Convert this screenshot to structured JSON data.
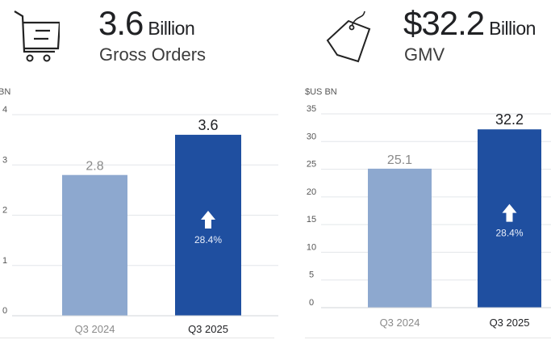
{
  "headers": [
    {
      "value": "3.6",
      "unit": "Billion",
      "label": "Gross Orders",
      "icon": "shopping-cart-icon"
    },
    {
      "value": "$32.2",
      "unit": "Billion",
      "label": "GMV",
      "icon": "price-tag-icon"
    }
  ],
  "colors": {
    "prior": "#8da8cf",
    "current": "#1f4fa0",
    "grid": "#e3e6ea",
    "axis_text": "#555555",
    "prior_label": "#8a8a8a",
    "current_label": "#202124"
  },
  "chart_data": [
    {
      "type": "bar",
      "title": "Gross Orders",
      "ylabel": "BN",
      "categories": [
        "Q3 2024",
        "Q3 2025"
      ],
      "values": [
        2.8,
        3.6
      ],
      "value_labels": [
        "2.8",
        "3.6"
      ],
      "ylim": [
        0,
        4
      ],
      "yticks": [
        0,
        1,
        2,
        3,
        4
      ],
      "ytick_labels": [
        "0",
        "1",
        "2",
        "3",
        "4"
      ],
      "growth_annotation": "28.4%",
      "grid": true
    },
    {
      "type": "bar",
      "title": "GMV",
      "ylabel": "$US BN",
      "categories": [
        "Q3 2024",
        "Q3 2025"
      ],
      "values": [
        25.1,
        32.2
      ],
      "value_labels": [
        "25.1",
        "32.2"
      ],
      "ylim": [
        0,
        35
      ],
      "yticks": [
        0,
        5,
        10,
        15,
        20,
        25,
        30,
        35
      ],
      "ytick_labels": [
        "0",
        "5",
        "10",
        "15",
        "20",
        "25",
        "30",
        "35"
      ],
      "growth_annotation": "28.4%",
      "grid": true
    }
  ]
}
